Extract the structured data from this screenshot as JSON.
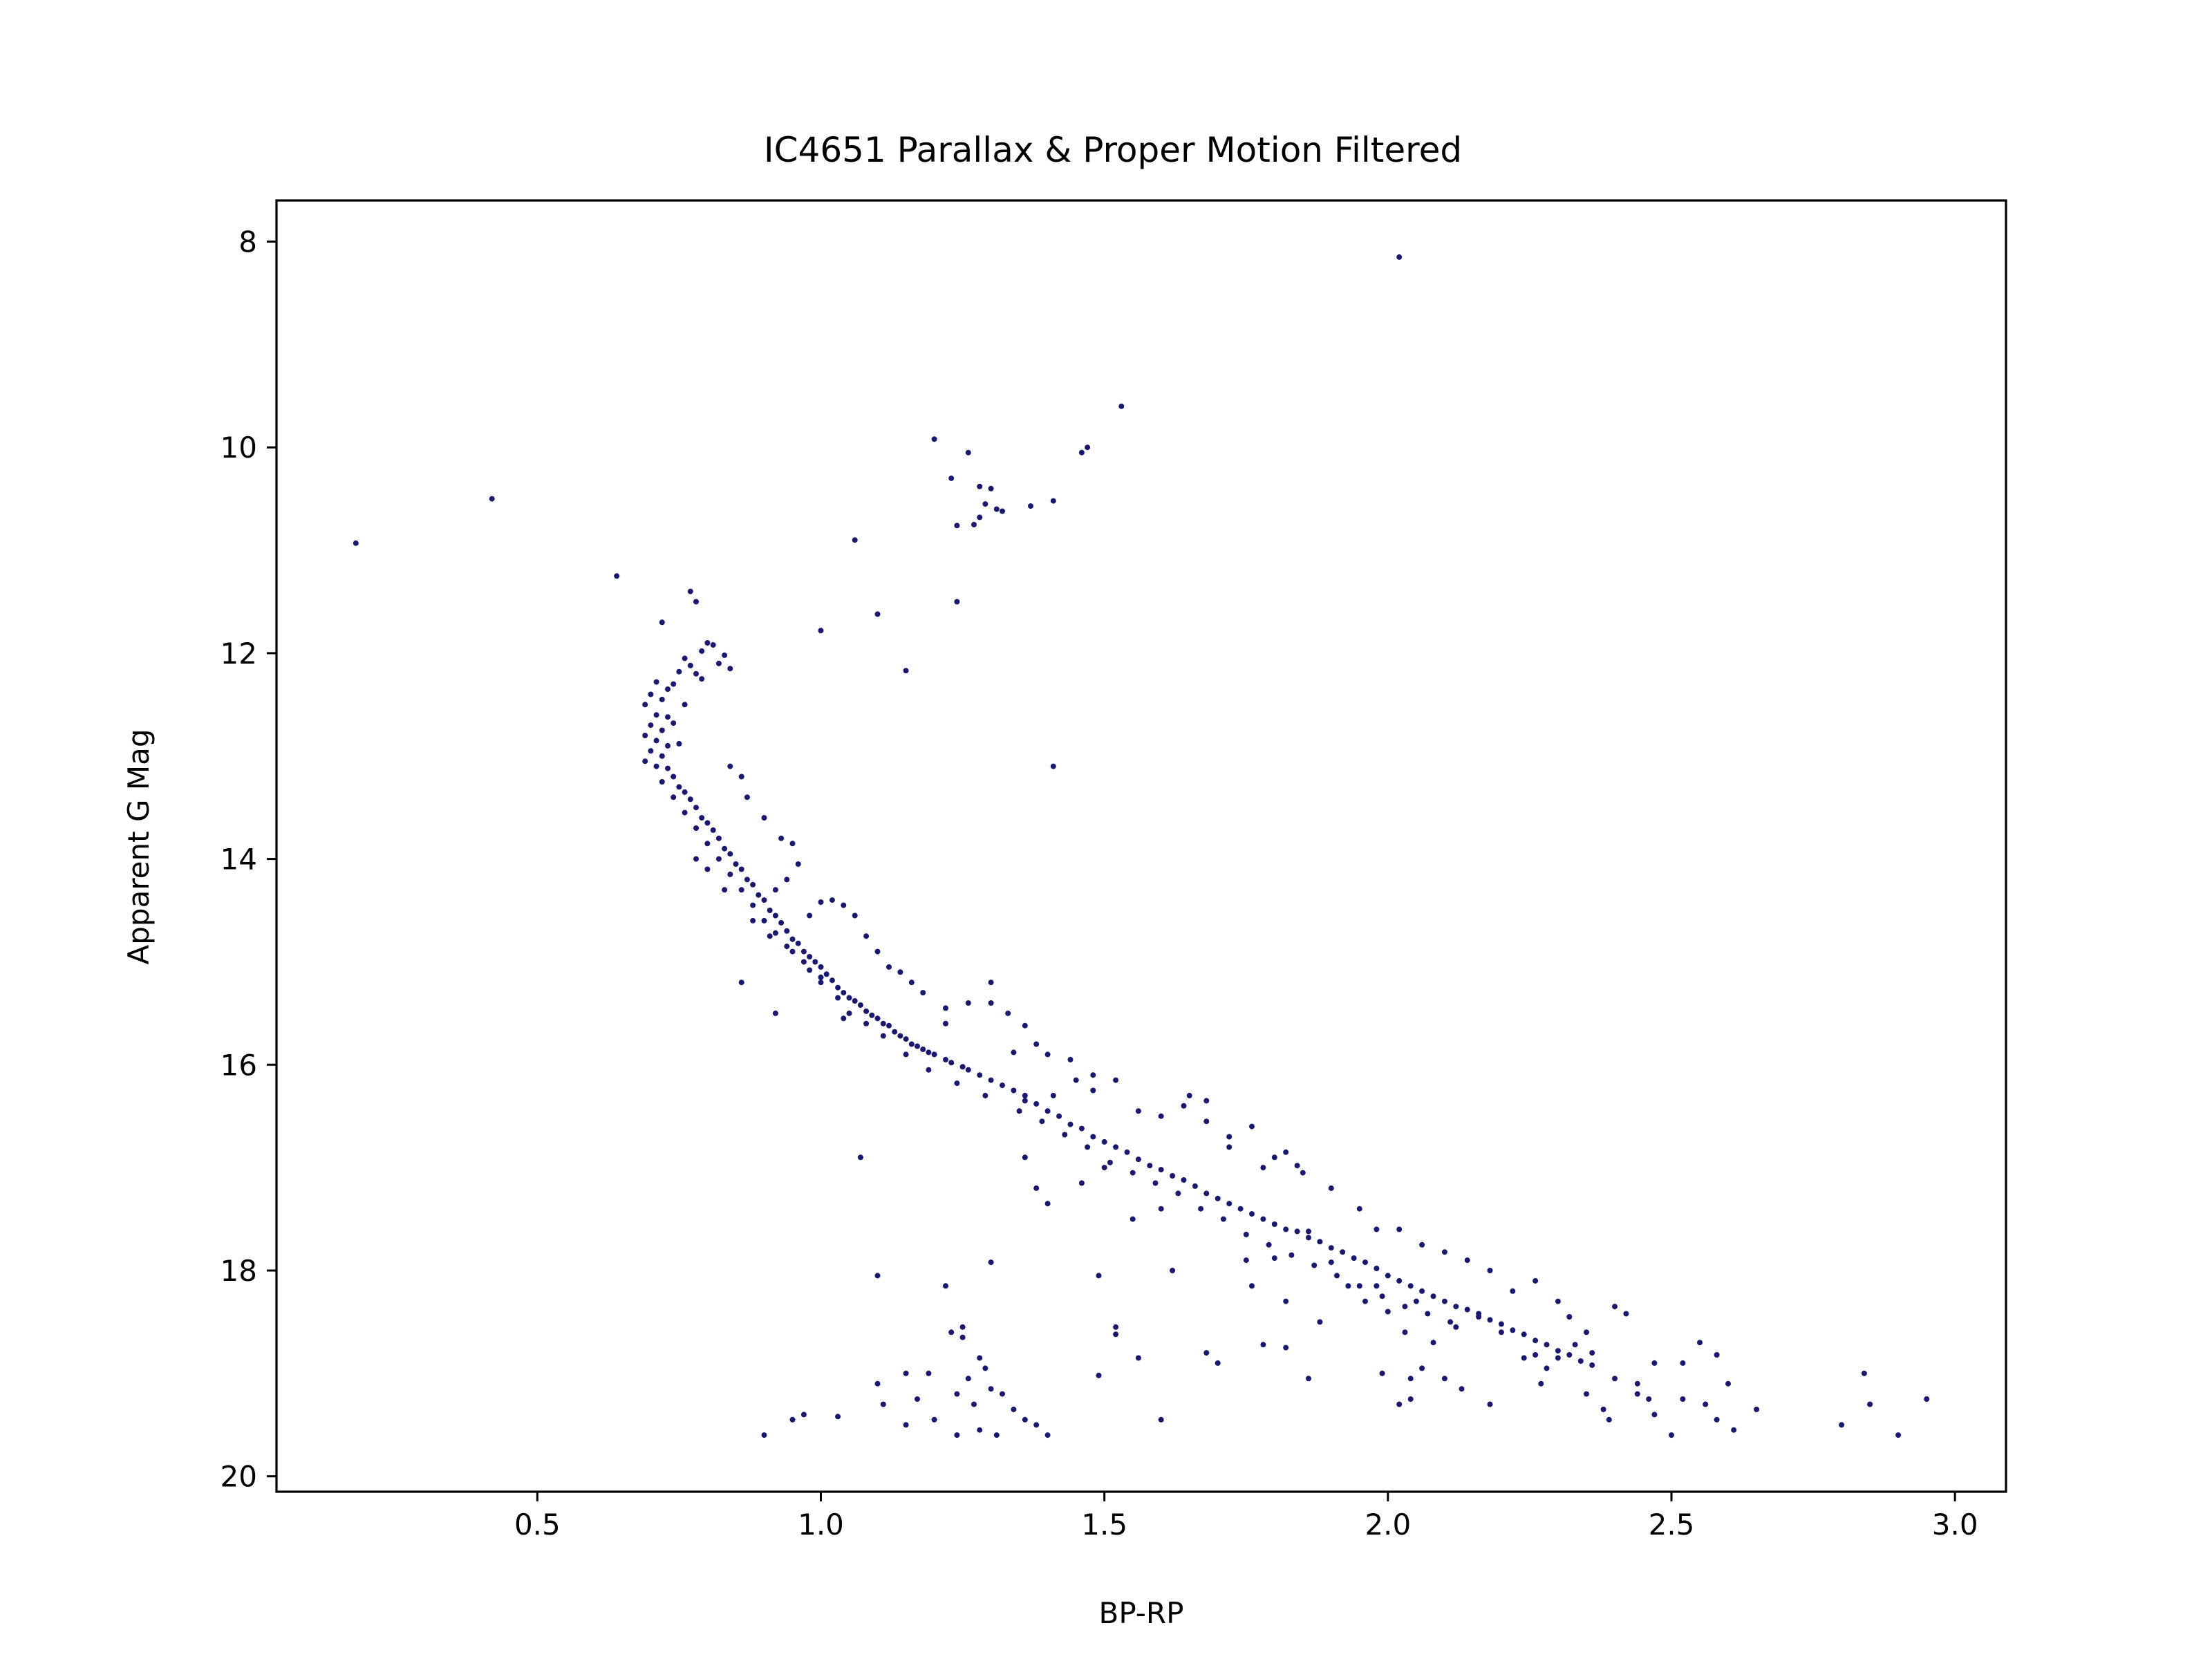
{
  "chart_data": {
    "type": "scatter",
    "title": "IC4651 Parallax & Proper Motion Filtered",
    "xlabel": "BP-RP",
    "ylabel": "Apparent G Mag",
    "xlim": [
      0.04,
      3.09
    ],
    "ylim": [
      20.15,
      7.6
    ],
    "y_inverted": true,
    "grid": false,
    "point_color": "#191970",
    "x_ticks": [
      {
        "value": 0.5,
        "label": "0.5"
      },
      {
        "value": 1.0,
        "label": "1.0"
      },
      {
        "value": 1.5,
        "label": "1.5"
      },
      {
        "value": 2.0,
        "label": "2.0"
      },
      {
        "value": 2.5,
        "label": "2.5"
      },
      {
        "value": 3.0,
        "label": "3.0"
      }
    ],
    "y_ticks": [
      {
        "value": 8,
        "label": "8"
      },
      {
        "value": 10,
        "label": "10"
      },
      {
        "value": 12,
        "label": "12"
      },
      {
        "value": 14,
        "label": "14"
      },
      {
        "value": 16,
        "label": "16"
      },
      {
        "value": 18,
        "label": "18"
      },
      {
        "value": 20,
        "label": "20"
      }
    ],
    "points": [
      [
        2.02,
        8.15
      ],
      [
        1.53,
        9.6
      ],
      [
        1.47,
        10.0
      ],
      [
        1.46,
        10.05
      ],
      [
        1.2,
        9.92
      ],
      [
        1.26,
        10.05
      ],
      [
        1.23,
        10.3
      ],
      [
        1.28,
        10.38
      ],
      [
        1.3,
        10.4
      ],
      [
        1.29,
        10.55
      ],
      [
        1.31,
        10.6
      ],
      [
        1.32,
        10.62
      ],
      [
        1.28,
        10.68
      ],
      [
        1.27,
        10.75
      ],
      [
        1.24,
        10.76
      ],
      [
        1.37,
        10.57
      ],
      [
        1.41,
        10.52
      ],
      [
        0.42,
        10.5
      ],
      [
        0.18,
        10.93
      ],
      [
        1.06,
        10.9
      ],
      [
        0.64,
        11.25
      ],
      [
        1.1,
        11.62
      ],
      [
        1.0,
        11.78
      ],
      [
        1.24,
        11.5
      ],
      [
        1.15,
        12.17
      ],
      [
        1.41,
        13.1
      ],
      [
        0.77,
        11.4
      ],
      [
        0.78,
        11.5
      ],
      [
        0.72,
        11.7
      ],
      [
        0.8,
        11.9
      ],
      [
        0.81,
        11.92
      ],
      [
        0.79,
        11.98
      ],
      [
        0.83,
        12.02
      ],
      [
        0.82,
        12.1
      ],
      [
        0.84,
        12.15
      ],
      [
        0.76,
        12.05
      ],
      [
        0.77,
        12.12
      ],
      [
        0.78,
        12.2
      ],
      [
        0.79,
        12.25
      ],
      [
        0.75,
        12.18
      ],
      [
        0.74,
        12.3
      ],
      [
        0.71,
        12.28
      ],
      [
        0.73,
        12.35
      ],
      [
        0.7,
        12.4
      ],
      [
        0.72,
        12.45
      ],
      [
        0.76,
        12.5
      ],
      [
        0.69,
        12.5
      ],
      [
        0.71,
        12.6
      ],
      [
        0.73,
        12.62
      ],
      [
        0.74,
        12.68
      ],
      [
        0.7,
        12.7
      ],
      [
        0.72,
        12.75
      ],
      [
        0.69,
        12.8
      ],
      [
        0.71,
        12.85
      ],
      [
        0.73,
        12.9
      ],
      [
        0.75,
        12.88
      ],
      [
        0.7,
        12.95
      ],
      [
        0.72,
        13.0
      ],
      [
        0.69,
        13.05
      ],
      [
        0.71,
        13.1
      ],
      [
        0.73,
        13.12
      ],
      [
        0.74,
        13.2
      ],
      [
        0.72,
        13.25
      ],
      [
        0.75,
        13.3
      ],
      [
        0.76,
        13.35
      ],
      [
        0.74,
        13.4
      ],
      [
        0.77,
        13.42
      ],
      [
        0.78,
        13.5
      ],
      [
        0.76,
        13.55
      ],
      [
        0.79,
        13.6
      ],
      [
        0.8,
        13.65
      ],
      [
        0.78,
        13.7
      ],
      [
        0.81,
        13.72
      ],
      [
        0.82,
        13.8
      ],
      [
        0.8,
        13.85
      ],
      [
        0.83,
        13.9
      ],
      [
        0.84,
        13.95
      ],
      [
        0.82,
        14.0
      ],
      [
        0.85,
        14.05
      ],
      [
        0.86,
        14.1
      ],
      [
        0.84,
        14.15
      ],
      [
        0.87,
        14.2
      ],
      [
        0.88,
        14.25
      ],
      [
        0.86,
        14.3
      ],
      [
        0.89,
        14.35
      ],
      [
        0.9,
        14.4
      ],
      [
        0.88,
        14.45
      ],
      [
        0.91,
        14.5
      ],
      [
        0.92,
        14.55
      ],
      [
        0.9,
        14.6
      ],
      [
        0.93,
        14.62
      ],
      [
        0.94,
        14.7
      ],
      [
        0.92,
        14.72
      ],
      [
        0.95,
        14.78
      ],
      [
        0.96,
        14.82
      ],
      [
        0.94,
        14.85
      ],
      [
        0.97,
        14.9
      ],
      [
        0.98,
        14.95
      ],
      [
        0.99,
        15.0
      ],
      [
        1.0,
        15.05
      ],
      [
        0.98,
        15.08
      ],
      [
        1.01,
        15.12
      ],
      [
        1.02,
        15.18
      ],
      [
        1.0,
        15.2
      ],
      [
        1.03,
        15.25
      ],
      [
        1.04,
        15.3
      ],
      [
        1.05,
        15.35
      ],
      [
        1.06,
        15.38
      ],
      [
        1.07,
        15.42
      ],
      [
        1.08,
        15.48
      ],
      [
        1.09,
        15.52
      ],
      [
        1.1,
        15.55
      ],
      [
        1.11,
        15.6
      ],
      [
        1.12,
        15.62
      ],
      [
        1.13,
        15.68
      ],
      [
        1.14,
        15.72
      ],
      [
        1.15,
        15.75
      ],
      [
        1.16,
        15.8
      ],
      [
        1.17,
        15.82
      ],
      [
        1.18,
        15.85
      ],
      [
        1.19,
        15.88
      ],
      [
        1.2,
        15.9
      ],
      [
        1.22,
        15.95
      ],
      [
        1.23,
        15.98
      ],
      [
        1.25,
        16.02
      ],
      [
        1.26,
        16.05
      ],
      [
        1.28,
        16.1
      ],
      [
        1.3,
        16.15
      ],
      [
        1.32,
        16.2
      ],
      [
        1.34,
        16.25
      ],
      [
        1.36,
        16.3
      ],
      [
        1.38,
        16.38
      ],
      [
        1.4,
        16.45
      ],
      [
        1.42,
        16.5
      ],
      [
        1.44,
        16.58
      ],
      [
        1.46,
        16.62
      ],
      [
        1.48,
        16.7
      ],
      [
        1.5,
        16.75
      ],
      [
        1.52,
        16.8
      ],
      [
        1.54,
        16.85
      ],
      [
        1.56,
        16.92
      ],
      [
        1.58,
        16.98
      ],
      [
        1.6,
        17.02
      ],
      [
        1.62,
        17.08
      ],
      [
        1.64,
        17.12
      ],
      [
        1.66,
        17.18
      ],
      [
        1.68,
        17.25
      ],
      [
        1.7,
        17.3
      ],
      [
        1.72,
        17.35
      ],
      [
        1.74,
        17.4
      ],
      [
        1.76,
        17.45
      ],
      [
        1.78,
        17.5
      ],
      [
        1.8,
        17.55
      ],
      [
        1.82,
        17.6
      ],
      [
        1.84,
        17.62
      ],
      [
        1.86,
        17.68
      ],
      [
        1.88,
        17.72
      ],
      [
        1.9,
        17.78
      ],
      [
        1.92,
        17.82
      ],
      [
        1.94,
        17.88
      ],
      [
        1.96,
        17.92
      ],
      [
        1.98,
        17.98
      ],
      [
        2.0,
        18.05
      ],
      [
        2.02,
        18.1
      ],
      [
        2.04,
        18.15
      ],
      [
        2.06,
        18.2
      ],
      [
        2.08,
        18.25
      ],
      [
        2.1,
        18.3
      ],
      [
        2.12,
        18.35
      ],
      [
        2.14,
        18.38
      ],
      [
        2.16,
        18.42
      ],
      [
        2.18,
        18.48
      ],
      [
        2.2,
        18.52
      ],
      [
        2.22,
        18.58
      ],
      [
        2.24,
        18.62
      ],
      [
        2.26,
        18.68
      ],
      [
        2.28,
        18.72
      ],
      [
        2.3,
        18.78
      ],
      [
        2.32,
        18.82
      ],
      [
        2.34,
        18.88
      ],
      [
        2.36,
        18.92
      ],
      [
        0.84,
        13.1
      ],
      [
        0.86,
        13.2
      ],
      [
        0.87,
        13.4
      ],
      [
        0.9,
        13.6
      ],
      [
        0.93,
        13.8
      ],
      [
        0.95,
        13.85
      ],
      [
        0.96,
        14.05
      ],
      [
        0.94,
        14.2
      ],
      [
        1.02,
        14.4
      ],
      [
        1.04,
        14.45
      ],
      [
        1.06,
        14.55
      ],
      [
        1.0,
        14.42
      ],
      [
        1.08,
        14.75
      ],
      [
        1.1,
        14.9
      ],
      [
        1.12,
        15.05
      ],
      [
        1.14,
        15.1
      ],
      [
        1.16,
        15.2
      ],
      [
        1.18,
        15.3
      ],
      [
        1.22,
        15.45
      ],
      [
        1.26,
        15.4
      ],
      [
        1.3,
        15.4
      ],
      [
        1.3,
        15.2
      ],
      [
        1.33,
        15.5
      ],
      [
        1.36,
        15.62
      ],
      [
        1.38,
        15.8
      ],
      [
        1.4,
        15.9
      ],
      [
        1.44,
        15.95
      ],
      [
        1.48,
        16.1
      ],
      [
        1.52,
        16.15
      ],
      [
        1.56,
        16.45
      ],
      [
        1.6,
        16.5
      ],
      [
        1.64,
        16.4
      ],
      [
        1.68,
        16.55
      ],
      [
        1.72,
        16.7
      ],
      [
        1.76,
        16.6
      ],
      [
        1.8,
        16.9
      ],
      [
        1.84,
        16.98
      ],
      [
        1.9,
        17.2
      ],
      [
        1.95,
        17.4
      ],
      [
        1.98,
        17.6
      ],
      [
        2.02,
        17.6
      ],
      [
        2.06,
        17.75
      ],
      [
        2.1,
        17.82
      ],
      [
        2.14,
        17.9
      ],
      [
        2.18,
        18.0
      ],
      [
        2.22,
        18.2
      ],
      [
        2.26,
        18.1
      ],
      [
        2.3,
        18.3
      ],
      [
        2.32,
        18.45
      ],
      [
        2.35,
        18.6
      ],
      [
        2.4,
        18.35
      ],
      [
        2.42,
        18.42
      ],
      [
        0.78,
        14.0
      ],
      [
        0.8,
        14.1
      ],
      [
        0.83,
        14.3
      ],
      [
        0.88,
        14.6
      ],
      [
        0.91,
        14.75
      ],
      [
        0.95,
        14.9
      ],
      [
        0.97,
        15.0
      ],
      [
        1.0,
        15.15
      ],
      [
        1.03,
        15.35
      ],
      [
        1.05,
        15.5
      ],
      [
        1.08,
        15.6
      ],
      [
        1.11,
        15.72
      ],
      [
        1.15,
        15.9
      ],
      [
        1.19,
        16.05
      ],
      [
        1.24,
        16.18
      ],
      [
        1.29,
        16.3
      ],
      [
        1.35,
        16.45
      ],
      [
        1.39,
        16.55
      ],
      [
        1.43,
        16.68
      ],
      [
        1.47,
        16.8
      ],
      [
        1.51,
        16.95
      ],
      [
        1.55,
        17.05
      ],
      [
        1.59,
        17.15
      ],
      [
        1.63,
        17.25
      ],
      [
        1.67,
        17.4
      ],
      [
        1.71,
        17.5
      ],
      [
        1.75,
        17.65
      ],
      [
        1.79,
        17.75
      ],
      [
        1.83,
        17.85
      ],
      [
        1.87,
        17.95
      ],
      [
        1.91,
        18.05
      ],
      [
        1.95,
        18.15
      ],
      [
        1.99,
        18.25
      ],
      [
        2.03,
        18.35
      ],
      [
        2.07,
        18.42
      ],
      [
        2.11,
        18.5
      ],
      [
        0.86,
        15.2
      ],
      [
        0.92,
        14.3
      ],
      [
        0.98,
        14.55
      ],
      [
        1.04,
        15.55
      ],
      [
        0.92,
        15.5
      ],
      [
        1.07,
        16.9
      ],
      [
        1.22,
        15.6
      ],
      [
        1.34,
        15.88
      ],
      [
        1.36,
        16.35
      ],
      [
        1.41,
        16.3
      ],
      [
        1.45,
        16.15
      ],
      [
        1.48,
        16.25
      ],
      [
        1.36,
        16.9
      ],
      [
        1.38,
        17.2
      ],
      [
        1.4,
        17.35
      ],
      [
        1.46,
        17.15
      ],
      [
        1.5,
        17.0
      ],
      [
        1.55,
        17.5
      ],
      [
        1.6,
        17.4
      ],
      [
        1.65,
        16.3
      ],
      [
        1.68,
        16.35
      ],
      [
        1.72,
        16.8
      ],
      [
        1.75,
        17.9
      ],
      [
        1.78,
        17.0
      ],
      [
        1.82,
        16.85
      ],
      [
        1.85,
        17.05
      ],
      [
        1.8,
        17.88
      ],
      [
        1.86,
        17.62
      ],
      [
        1.9,
        17.92
      ],
      [
        1.93,
        18.15
      ],
      [
        1.96,
        18.3
      ],
      [
        2.0,
        18.4
      ],
      [
        2.03,
        18.6
      ],
      [
        2.08,
        18.7
      ],
      [
        2.12,
        18.55
      ],
      [
        2.16,
        18.45
      ],
      [
        2.2,
        18.6
      ],
      [
        2.24,
        18.85
      ],
      [
        2.28,
        18.95
      ],
      [
        2.33,
        18.72
      ],
      [
        2.36,
        18.8
      ],
      [
        2.4,
        19.05
      ],
      [
        2.44,
        19.1
      ],
      [
        2.47,
        18.9
      ],
      [
        2.52,
        18.9
      ],
      [
        2.55,
        18.7
      ],
      [
        2.58,
        18.82
      ],
      [
        2.6,
        19.1
      ],
      [
        2.52,
        19.25
      ],
      [
        2.47,
        19.4
      ],
      [
        1.1,
        18.05
      ],
      [
        1.3,
        17.92
      ],
      [
        1.49,
        18.05
      ],
      [
        1.62,
        18.0
      ],
      [
        1.76,
        18.15
      ],
      [
        1.82,
        18.3
      ],
      [
        1.88,
        18.5
      ],
      [
        1.98,
        18.15
      ],
      [
        2.05,
        18.3
      ],
      [
        1.78,
        18.72
      ],
      [
        1.82,
        18.75
      ],
      [
        1.86,
        19.05
      ],
      [
        1.52,
        18.55
      ],
      [
        1.52,
        18.62
      ],
      [
        1.56,
        18.85
      ],
      [
        1.49,
        19.02
      ],
      [
        1.68,
        18.8
      ],
      [
        1.7,
        18.9
      ],
      [
        1.99,
        19.0
      ],
      [
        2.02,
        19.3
      ],
      [
        2.04,
        19.05
      ],
      [
        2.04,
        19.25
      ],
      [
        2.06,
        18.95
      ],
      [
        2.1,
        19.05
      ],
      [
        2.13,
        19.15
      ],
      [
        2.18,
        19.3
      ],
      [
        2.27,
        19.1
      ],
      [
        2.26,
        18.82
      ],
      [
        2.3,
        18.85
      ],
      [
        2.35,
        19.2
      ],
      [
        2.38,
        19.35
      ],
      [
        2.39,
        19.45
      ],
      [
        2.44,
        19.2
      ],
      [
        2.46,
        19.25
      ],
      [
        2.5,
        19.6
      ],
      [
        2.56,
        19.3
      ],
      [
        2.61,
        19.55
      ],
      [
        2.65,
        19.35
      ],
      [
        2.58,
        19.45
      ],
      [
        2.8,
        19.5
      ],
      [
        2.84,
        19.0
      ],
      [
        2.85,
        19.3
      ],
      [
        2.9,
        19.6
      ],
      [
        2.95,
        19.25
      ],
      [
        1.6,
        19.45
      ],
      [
        0.9,
        19.6
      ],
      [
        0.95,
        19.45
      ],
      [
        0.97,
        19.4
      ],
      [
        1.03,
        19.42
      ],
      [
        1.1,
        19.1
      ],
      [
        1.11,
        19.3
      ],
      [
        1.15,
        19.5
      ],
      [
        1.17,
        19.25
      ],
      [
        1.19,
        19.0
      ],
      [
        1.2,
        19.45
      ],
      [
        1.22,
        18.15
      ],
      [
        1.23,
        18.6
      ],
      [
        1.25,
        18.55
      ],
      [
        1.25,
        18.65
      ],
      [
        1.24,
        19.2
      ],
      [
        1.26,
        19.05
      ],
      [
        1.27,
        19.3
      ],
      [
        1.28,
        19.55
      ],
      [
        1.3,
        19.15
      ],
      [
        1.32,
        19.2
      ],
      [
        1.31,
        19.6
      ],
      [
        1.29,
        18.95
      ],
      [
        1.28,
        18.85
      ],
      [
        1.34,
        19.35
      ],
      [
        1.36,
        19.45
      ],
      [
        1.38,
        19.5
      ],
      [
        1.4,
        19.6
      ],
      [
        1.15,
        19.0
      ],
      [
        1.24,
        19.6
      ]
    ]
  }
}
